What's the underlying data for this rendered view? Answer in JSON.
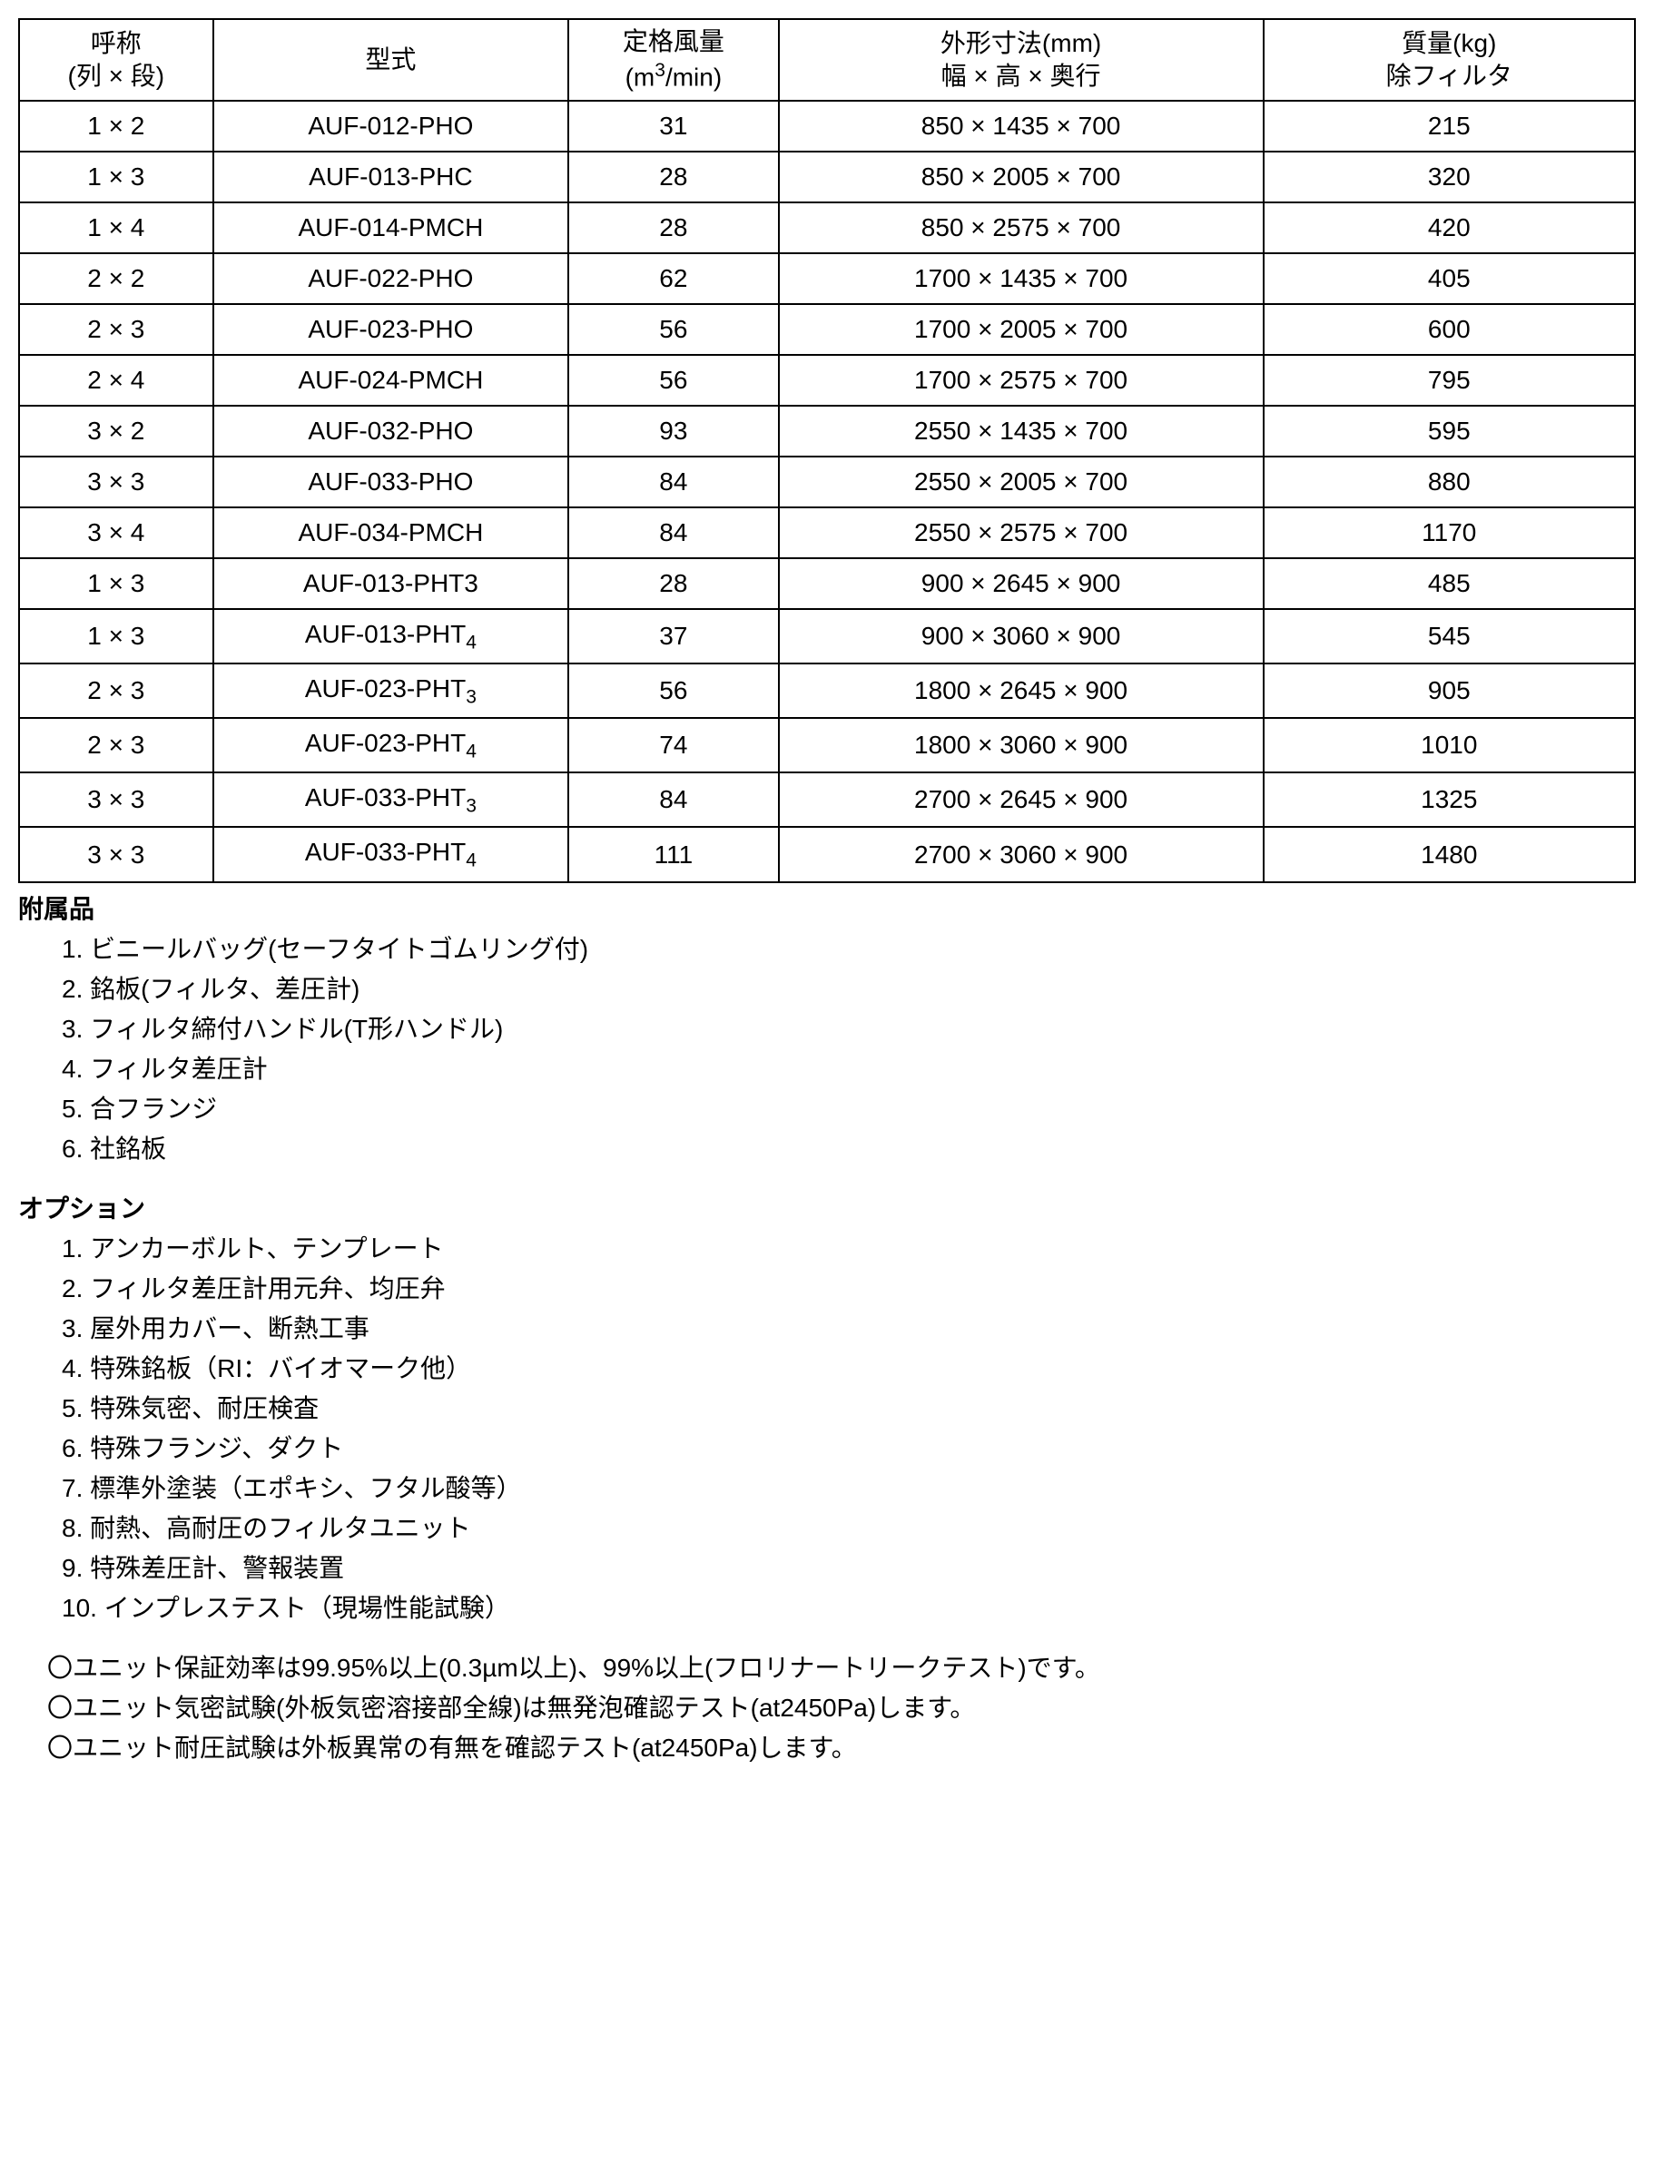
{
  "table": {
    "headers": {
      "designation_line1": "呼称",
      "designation_line2": "(列 × 段)",
      "model": "型式",
      "airflow_line1": "定格風量",
      "airflow_line2_prefix": "(m",
      "airflow_line2_sup": "3",
      "airflow_line2_suffix": "/min)",
      "dimensions_line1": "外形寸法(mm)",
      "dimensions_line2": "幅 × 高 × 奥行",
      "mass_line1": "質量(kg)",
      "mass_line2": "除フィルタ"
    },
    "rows": [
      {
        "designation": "1 × 2",
        "model": "AUF-012-PHO",
        "model_sub": "",
        "airflow": "31",
        "dimensions": "850 × 1435 × 700",
        "mass": "215"
      },
      {
        "designation": "1 × 3",
        "model": "AUF-013-PHC",
        "model_sub": "",
        "airflow": "28",
        "dimensions": "850 × 2005 × 700",
        "mass": "320"
      },
      {
        "designation": "1 × 4",
        "model": "AUF-014-PMCH",
        "model_sub": "",
        "airflow": "28",
        "dimensions": "850 × 2575 × 700",
        "mass": "420"
      },
      {
        "designation": "2 × 2",
        "model": "AUF-022-PHO",
        "model_sub": "",
        "airflow": "62",
        "dimensions": "1700 × 1435 × 700",
        "mass": "405"
      },
      {
        "designation": "2 × 3",
        "model": "AUF-023-PHO",
        "model_sub": "",
        "airflow": "56",
        "dimensions": "1700 × 2005 × 700",
        "mass": "600"
      },
      {
        "designation": "2 × 4",
        "model": "AUF-024-PMCH",
        "model_sub": "",
        "airflow": "56",
        "dimensions": "1700 × 2575 × 700",
        "mass": "795"
      },
      {
        "designation": "3 × 2",
        "model": "AUF-032-PHO",
        "model_sub": "",
        "airflow": "93",
        "dimensions": "2550 × 1435 × 700",
        "mass": "595"
      },
      {
        "designation": "3 × 3",
        "model": "AUF-033-PHO",
        "model_sub": "",
        "airflow": "84",
        "dimensions": "2550 × 2005 × 700",
        "mass": "880"
      },
      {
        "designation": "3 × 4",
        "model": "AUF-034-PMCH",
        "model_sub": "",
        "airflow": "84",
        "dimensions": "2550 × 2575 × 700",
        "mass": "1170"
      },
      {
        "designation": "1 × 3",
        "model": "AUF-013-PHT3",
        "model_sub": "",
        "airflow": "28",
        "dimensions": "900 × 2645 × 900",
        "mass": "485"
      },
      {
        "designation": "1 × 3",
        "model": "AUF-013-PHT",
        "model_sub": "4",
        "airflow": "37",
        "dimensions": "900 × 3060 × 900",
        "mass": "545"
      },
      {
        "designation": "2 × 3",
        "model": "AUF-023-PHT",
        "model_sub": "3",
        "airflow": "56",
        "dimensions": "1800 × 2645 × 900",
        "mass": "905"
      },
      {
        "designation": "2 × 3",
        "model": "AUF-023-PHT",
        "model_sub": "4",
        "airflow": "74",
        "dimensions": "1800 × 3060 × 900",
        "mass": "1010"
      },
      {
        "designation": "3 × 3",
        "model": "AUF-033-PHT",
        "model_sub": "3",
        "airflow": "84",
        "dimensions": "2700 × 2645 × 900",
        "mass": "1325"
      },
      {
        "designation": "3 × 3",
        "model": "AUF-033-PHT",
        "model_sub": "4",
        "airflow": "111",
        "dimensions": "2700 × 3060 × 900",
        "mass": "1480"
      }
    ]
  },
  "accessories": {
    "title": "附属品",
    "items": [
      "1. ビニールバッグ(セーフタイトゴムリング付)",
      "2. 銘板(フィルタ、差圧計)",
      "3. フィルタ締付ハンドル(T形ハンドル)",
      "4. フィルタ差圧計",
      "5. 合フランジ",
      "6. 社銘板"
    ]
  },
  "options": {
    "title": "オプション",
    "items": [
      "1. アンカーボルト、テンプレート",
      "2. フィルタ差圧計用元弁、均圧弁",
      "3. 屋外用カバー、断熱工事",
      "4. 特殊銘板（RI：バイオマーク他）",
      "5. 特殊気密、耐圧検査",
      "6. 特殊フランジ、ダクト",
      "7. 標準外塗装（エポキシ、フタル酸等）",
      "8. 耐熱、高耐圧のフィルタユニット",
      "9. 特殊差圧計、警報装置",
      "10. インプレステスト（現場性能試験）"
    ]
  },
  "notes": [
    "〇ユニット保証効率は99.95%以上(0.3µm以上)、99%以上(フロリナートリークテスト)です。",
    "〇ユニット気密試験(外板気密溶接部全線)は無発泡確認テスト(at2450Pa)します。",
    "〇ユニット耐圧試験は外板異常の有無を確認テスト(at2450Pa)します。"
  ]
}
